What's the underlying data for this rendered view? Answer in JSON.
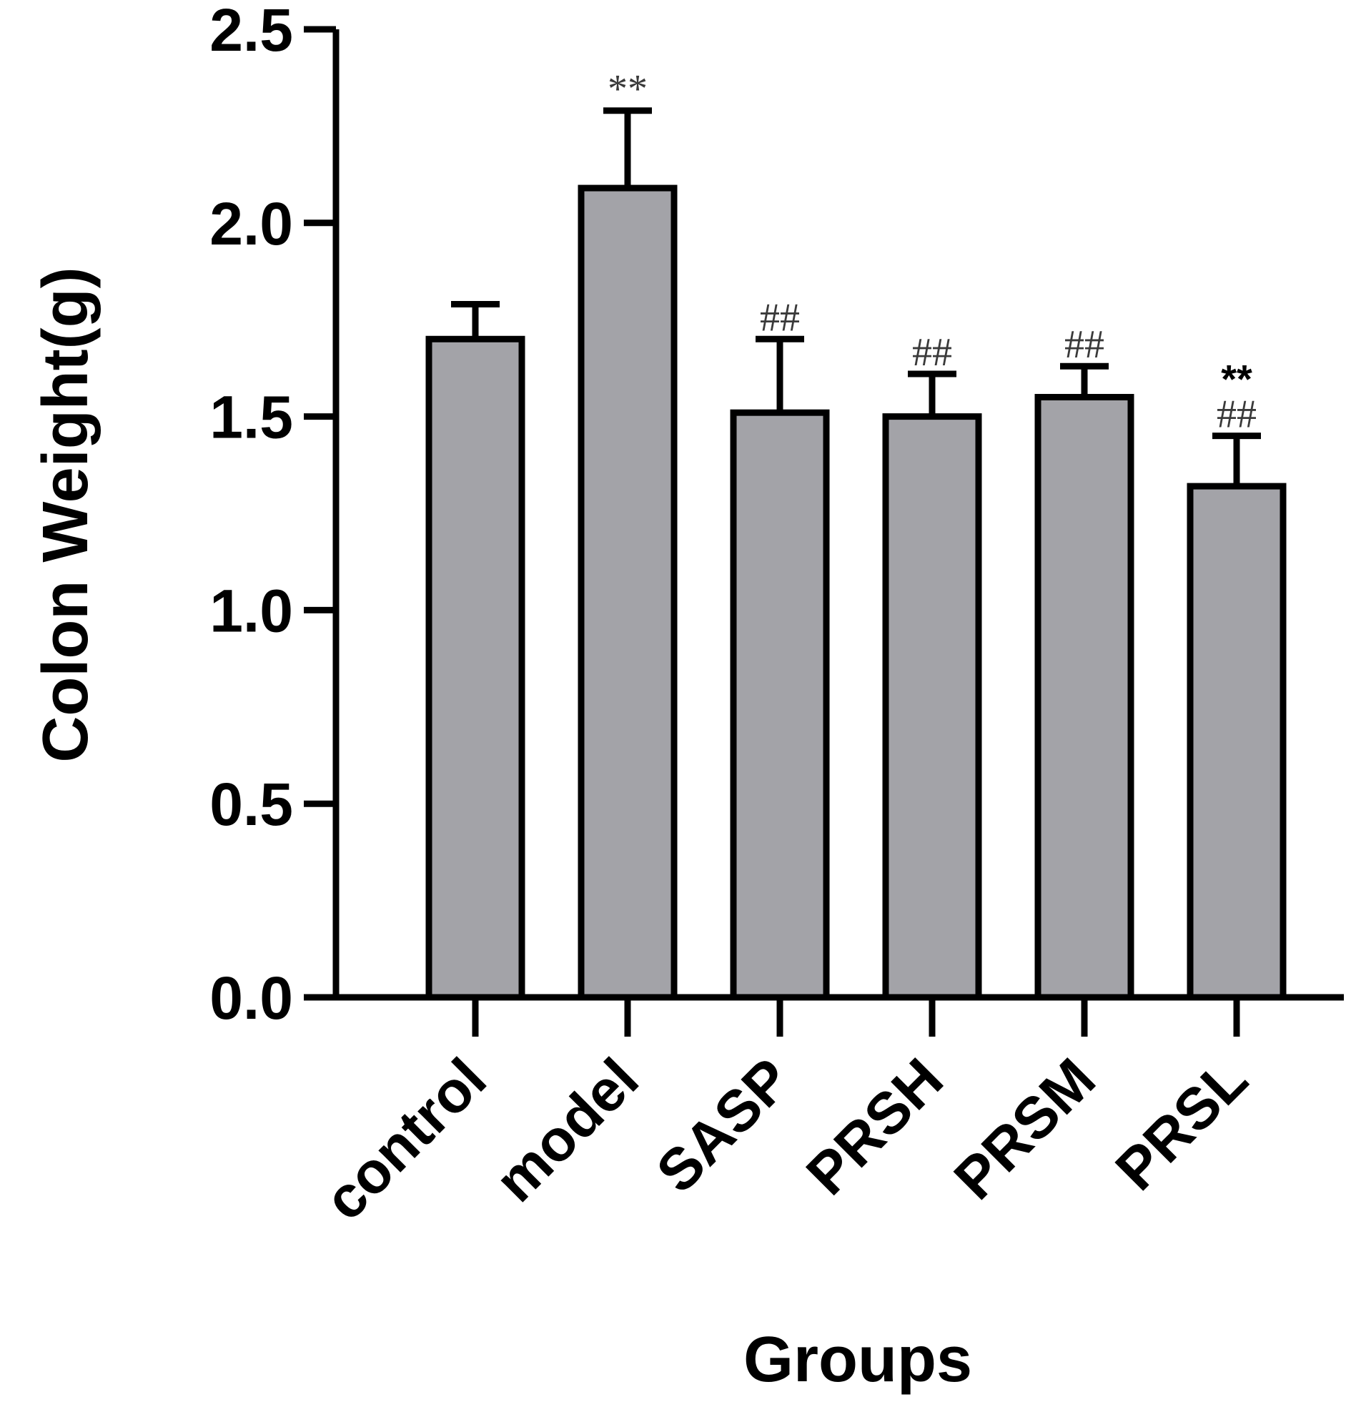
{
  "chart_data": {
    "type": "bar",
    "categories": [
      "control",
      "model",
      "SASP",
      "PRSH",
      "PRSM",
      "PRSL"
    ],
    "values": [
      1.7,
      2.09,
      1.51,
      1.5,
      1.55,
      1.32
    ],
    "errors": [
      0.09,
      0.2,
      0.19,
      0.11,
      0.08,
      0.13
    ],
    "annotations": [
      [],
      [
        "**"
      ],
      [
        "##"
      ],
      [
        "##"
      ],
      [
        "##"
      ],
      [
        "**",
        "##"
      ]
    ],
    "xlabel": "Groups",
    "ylabel": "Colon Weight(g)",
    "ylim": [
      0,
      2.5
    ],
    "yticks": [
      "0.0",
      "0.5",
      "1.0",
      "1.5",
      "2.0",
      "2.5"
    ],
    "grid": false,
    "colors": {
      "bar_fill": "#a3a3a8",
      "bar_stroke": "#000000",
      "axis": "#000000"
    }
  }
}
